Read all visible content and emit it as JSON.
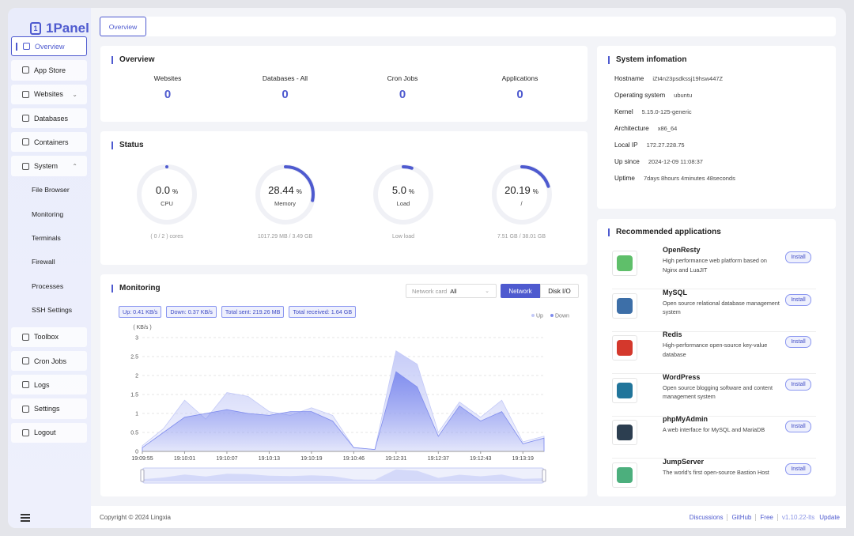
{
  "sidebar": {
    "brand": "1Panel",
    "menu": [
      {
        "label": "Overview",
        "active": true
      },
      {
        "label": "App Store"
      },
      {
        "label": "Websites",
        "expanded": false
      },
      {
        "label": "Databases"
      },
      {
        "label": "Containers"
      },
      {
        "label": "System",
        "expanded": true,
        "children": [
          "File Browser",
          "Monitoring",
          "Terminals",
          "Firewall",
          "Processes",
          "SSH Settings"
        ]
      },
      {
        "label": "Toolbox"
      },
      {
        "label": "Cron Jobs"
      },
      {
        "label": "Logs"
      },
      {
        "label": "Settings"
      },
      {
        "label": "Logout"
      }
    ]
  },
  "tab": "Overview",
  "overview": {
    "title": "Overview",
    "stats": [
      {
        "label": "Websites",
        "value": 0
      },
      {
        "label": "Databases - All",
        "value": 0
      },
      {
        "label": "Cron Jobs",
        "value": 0
      },
      {
        "label": "Applications",
        "value": 0
      }
    ]
  },
  "status": {
    "title": "Status",
    "unit": "%",
    "gauges": [
      {
        "value": {
          "value": 0,
          "label": "0.0"
        },
        "caption": "CPU",
        "detail": "( 0 / 2 ) cores"
      },
      {
        "value": 28.44,
        "caption": "Memory",
        "detail": "1017.29 MB / 3.49 GB"
      },
      {
        "value": {
          "value": 5,
          "label": "5.0"
        },
        "caption": "Load",
        "detail": "Low load"
      },
      {
        "value": 20.19,
        "caption": "/",
        "detail": "7.51 GB / 38.01 GB"
      }
    ]
  },
  "monitoring": {
    "title": "Monitoring",
    "select_label": "Network card",
    "select_value": "All",
    "buttons": [
      "Network",
      "Disk I/O"
    ],
    "tags": [
      "Up: 0.41 KB/s",
      "Down: 0.37 KB/s",
      "Total sent: 219.26 MB",
      "Total received: 1.64 GB"
    ],
    "chart": {
      "type": "area",
      "y_label": "( KB/s )",
      "categories": [
        "19:09:55",
        null,
        "19:10:01",
        null,
        "19:10:07",
        null,
        "19:10:13",
        null,
        "19:10:19",
        null,
        "19:10:46",
        null,
        "19:12:31",
        null,
        "19:12:37",
        null,
        "19:12:43",
        null,
        "19:13:19",
        null
      ],
      "series": [
        {
          "name": "Up",
          "color": "#c3c9f7",
          "values": [
            0.15,
            0.6,
            1.35,
            0.85,
            1.55,
            1.45,
            1.05,
            0.95,
            1.15,
            0.95,
            0.1,
            0.05,
            2.65,
            2.3,
            0.5,
            1.3,
            0.9,
            1.35,
            0.25,
            0.4
          ]
        },
        {
          "name": "Down",
          "color": "#7f8cee",
          "values": [
            0.1,
            0.5,
            0.9,
            1.0,
            1.1,
            1.0,
            0.95,
            1.05,
            1.05,
            0.8,
            0.1,
            0.05,
            2.1,
            1.7,
            0.4,
            1.2,
            0.8,
            1.05,
            0.2,
            0.35
          ]
        }
      ],
      "ylim": [
        0,
        3
      ],
      "yticks": [
        0,
        0.5,
        1,
        1.5,
        2,
        2.5,
        3
      ],
      "grid": true
    }
  },
  "system_info": {
    "title": "System infomation",
    "rows": [
      [
        "Hostname",
        "iZt4n23psdkssj19hsw447Z"
      ],
      [
        "Operating system",
        "ubuntu"
      ],
      [
        "Kernel",
        "5.15.0-125-generic"
      ],
      [
        "Architecture",
        "x86_64"
      ],
      [
        "Local IP",
        "172.27.228.75"
      ],
      [
        "Up since",
        "2024-12-09 11:08:37"
      ],
      [
        "Uptime",
        "7days 8hours 4minutes 48seconds"
      ]
    ]
  },
  "recommended": {
    "title": "Recommended applications",
    "button": "Install",
    "apps": [
      {
        "name": "OpenResty",
        "description": "High performance web platform based on Nginx and LuaJIT"
      },
      {
        "name": "MySQL",
        "description": "Open source relational database management system"
      },
      {
        "name": "Redis",
        "description": "High-performance open-source key-value database"
      },
      {
        "name": "WordPress",
        "description": "Open source blogging software and content management system"
      },
      {
        "name": "phpMyAdmin",
        "description": "A web interface for MySQL and MariaDB"
      },
      {
        "name": "JumpServer",
        "description": "The world's first open-source Bastion Host"
      }
    ]
  },
  "footer": {
    "copyright": "Copyright © 2024 Lingxia",
    "links": [
      "Discussions",
      "GitHub",
      "Free"
    ],
    "version": "v1.10.22-lts",
    "update": "Update"
  }
}
